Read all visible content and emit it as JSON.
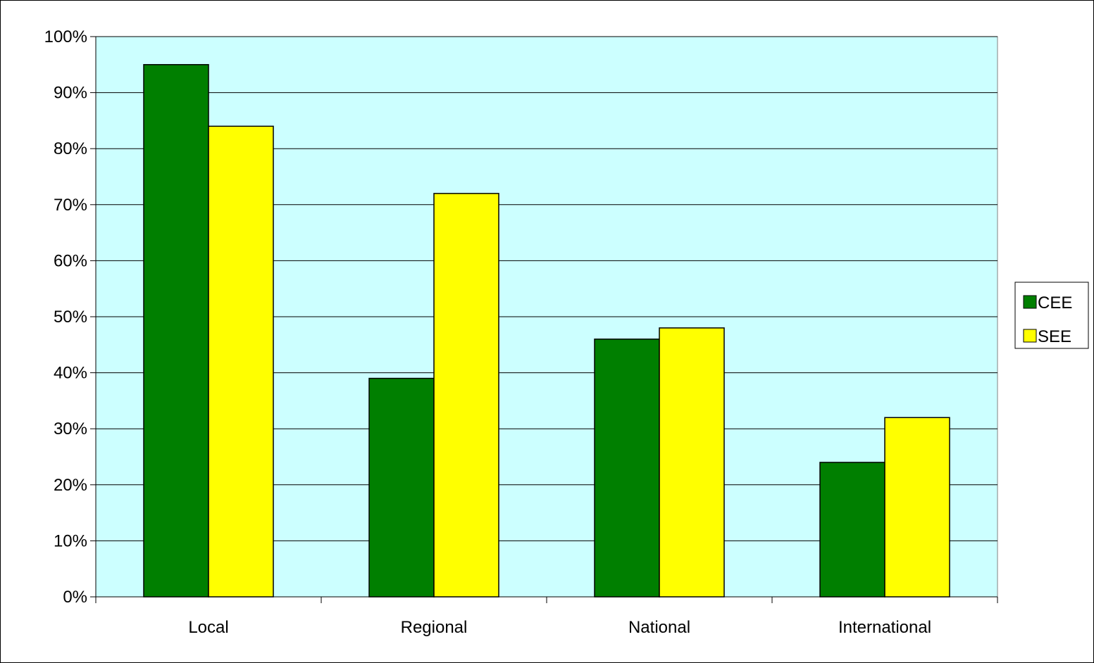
{
  "chart_data": {
    "type": "bar",
    "title": "",
    "xlabel": "",
    "ylabel": "",
    "categories": [
      "Local",
      "Regional",
      "National",
      "International"
    ],
    "series": [
      {
        "name": "CEE",
        "values": [
          95,
          39,
          46,
          24
        ],
        "color": "#007f00"
      },
      {
        "name": "SEE",
        "values": [
          84,
          72,
          48,
          32
        ],
        "color": "#ffff00"
      }
    ],
    "ylim": [
      0,
      100
    ],
    "yticks": [
      0,
      10,
      20,
      30,
      40,
      50,
      60,
      70,
      80,
      90,
      100
    ],
    "ytick_labels": [
      "0%",
      "10%",
      "20%",
      "30%",
      "40%",
      "50%",
      "60%",
      "70%",
      "80%",
      "90%",
      "100%"
    ],
    "grid": true,
    "legend_position": "right",
    "plot_background": "#ccffff"
  }
}
